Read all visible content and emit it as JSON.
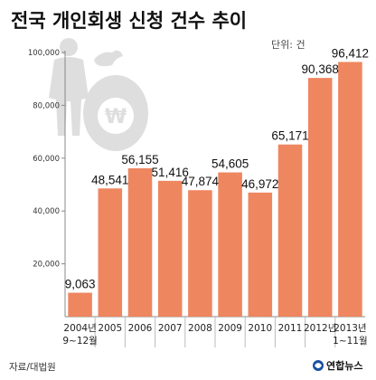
{
  "title": "전국 개인회생 신청 건수 추이",
  "unit": "단위: 건",
  "source": "자료/대법원",
  "logo": "연합뉴스",
  "colors": {
    "bar": "#ee8660",
    "axis": "#888888",
    "grid": "#cfcfcf",
    "text": "#111111",
    "illustration": "#dedede"
  },
  "illustration_icon": "person-with-won-money-bag-icon",
  "chart_data": {
    "type": "bar",
    "title": "전국 개인회생 신청 건수 추이",
    "xlabel": "",
    "ylabel": "",
    "ylim": [
      0,
      100000
    ],
    "yticks": [
      20000,
      40000,
      60000,
      80000,
      100000
    ],
    "ytick_labels": [
      "20,000",
      "40,000",
      "60,000",
      "80,000",
      "100,000"
    ],
    "grid": false,
    "categories": [
      [
        "2004년",
        "9~12월"
      ],
      [
        "2005"
      ],
      [
        "2006"
      ],
      [
        "2007"
      ],
      [
        "2008"
      ],
      [
        "2009"
      ],
      [
        "2010"
      ],
      [
        "2011"
      ],
      [
        "2012년"
      ],
      [
        "2013년",
        "1~11월"
      ]
    ],
    "values": [
      9063,
      48541,
      56155,
      51416,
      47874,
      54605,
      46972,
      65171,
      90368,
      96412
    ],
    "value_labels": [
      "9,063",
      "48,541",
      "56,155",
      "51,416",
      "47,874",
      "54,605",
      "46,972",
      "65,171",
      "90,368",
      "96,412"
    ]
  }
}
